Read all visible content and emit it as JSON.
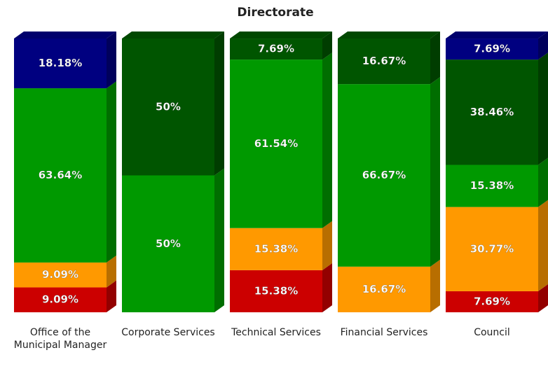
{
  "chart_data": {
    "type": "bar",
    "stacked": true,
    "title": "Directorate",
    "categories": [
      "Office of the Municipal Manager",
      "Corporate Services",
      "Technical Services",
      "Financial Services",
      "Council"
    ],
    "ylim": [
      0,
      100
    ],
    "series": [
      {
        "color": "#cc0000",
        "values": [
          9.09,
          null,
          15.38,
          null,
          7.69
        ],
        "value_labels": [
          "9.09%",
          null,
          "15.38%",
          null,
          "7.69%"
        ]
      },
      {
        "color": "#ff9900",
        "values": [
          9.09,
          null,
          15.38,
          16.67,
          30.77
        ],
        "value_labels": [
          "9.09%",
          null,
          "15.38%",
          "16.67%",
          "30.77%"
        ]
      },
      {
        "color": "#009900",
        "values": [
          63.64,
          50,
          61.54,
          66.67,
          15.38
        ],
        "value_labels": [
          "63.64%",
          "50%",
          "61.54%",
          "66.67%",
          "15.38%"
        ]
      },
      {
        "color": "#005500",
        "values": [
          null,
          50,
          7.69,
          16.67,
          38.46
        ],
        "value_labels": [
          null,
          "50%",
          "7.69%",
          "16.67%",
          "38.46%"
        ]
      },
      {
        "color": "#000080",
        "values": [
          18.18,
          null,
          null,
          null,
          7.69
        ],
        "value_labels": [
          "18.18%",
          null,
          null,
          null,
          "7.69%"
        ]
      }
    ]
  }
}
